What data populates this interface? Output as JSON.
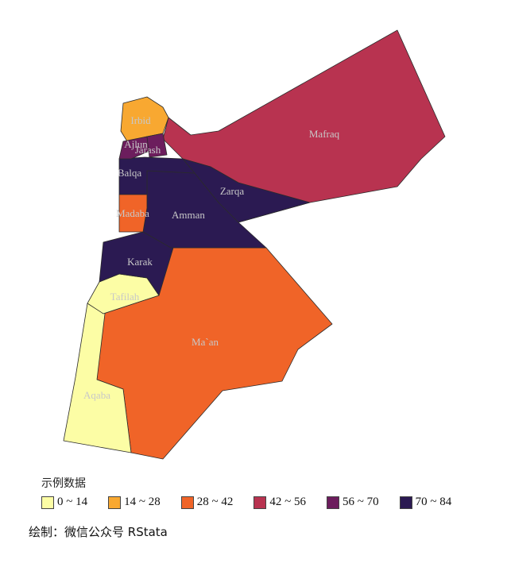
{
  "regions": [
    {
      "name": "Mafraq",
      "color": "#b83350"
    },
    {
      "name": "Ma`an",
      "color": "#f06428"
    },
    {
      "name": "Aqaba",
      "color": "#fcfda5"
    },
    {
      "name": "Tafilah",
      "color": "#fcfda5"
    },
    {
      "name": "Karak",
      "color": "#2b1a52"
    },
    {
      "name": "Amman",
      "color": "#2b1a52"
    },
    {
      "name": "Zarqa",
      "color": "#2b1a52"
    },
    {
      "name": "Balqa",
      "color": "#2b1a52"
    },
    {
      "name": "Madaba",
      "color": "#f06428"
    },
    {
      "name": "Irbid",
      "color": "#f8a831"
    },
    {
      "name": "Ajlun",
      "color": "#6c1d5d"
    },
    {
      "name": "Jarash",
      "color": "#6c1d5d"
    }
  ],
  "legend": {
    "title": "示例数据",
    "items": [
      {
        "label": "0 ~ 14",
        "color": "#fcfda5"
      },
      {
        "label": "14 ~ 28",
        "color": "#f8a831"
      },
      {
        "label": "28 ~ 42",
        "color": "#f06428"
      },
      {
        "label": "42 ~ 56",
        "color": "#b83350"
      },
      {
        "label": "56 ~ 70",
        "color": "#6c1d5d"
      },
      {
        "label": "70 ~ 84",
        "color": "#2b1a52"
      }
    ]
  },
  "caption": "绘制：微信公众号 RStata"
}
